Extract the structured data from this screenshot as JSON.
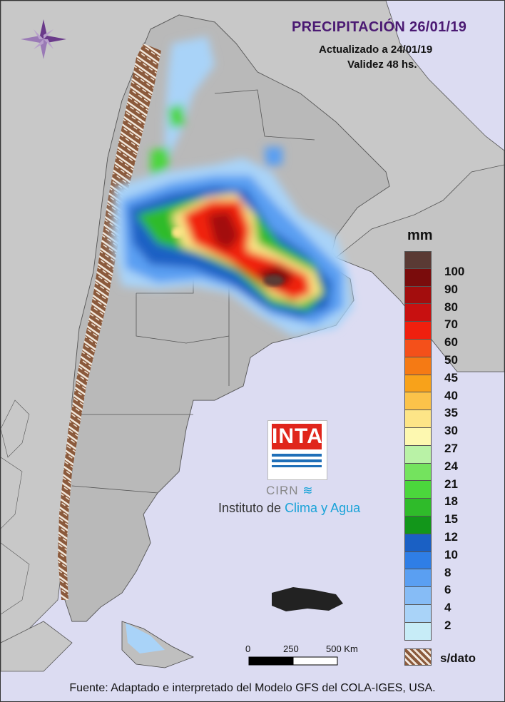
{
  "header": {
    "title": "PRECIPITACIÓN 26/01/19",
    "updated": "Actualizado a 24/01/19",
    "validity": "Validez 48 hs."
  },
  "legend": {
    "unit": "mm",
    "classes": [
      {
        "label": "100",
        "color": "#5a3a34"
      },
      {
        "label": "90",
        "color": "#7a0c0c"
      },
      {
        "label": "80",
        "color": "#a30d0d"
      },
      {
        "label": "70",
        "color": "#c81010"
      },
      {
        "label": "60",
        "color": "#f0200e"
      },
      {
        "label": "50",
        "color": "#f4501a"
      },
      {
        "label": "45",
        "color": "#f57a14"
      },
      {
        "label": "40",
        "color": "#f8a21a"
      },
      {
        "label": "35",
        "color": "#fbc34a"
      },
      {
        "label": "30",
        "color": "#fde587"
      },
      {
        "label": "27",
        "color": "#fdf8b0"
      },
      {
        "label": "24",
        "color": "#b9f2a6"
      },
      {
        "label": "21",
        "color": "#74e35e"
      },
      {
        "label": "18",
        "color": "#4bd63c"
      },
      {
        "label": "15",
        "color": "#2fbb2a"
      },
      {
        "label": "12",
        "color": "#12961a"
      },
      {
        "label": "10",
        "color": "#1a60c4"
      },
      {
        "label": "8",
        "color": "#2f7ee6"
      },
      {
        "label": "6",
        "color": "#5a9ff2"
      },
      {
        "label": "4",
        "color": "#86bcf6"
      },
      {
        "label": "2",
        "color": "#a9d3f8"
      },
      {
        "label": "",
        "color": "#c7ecf7"
      }
    ],
    "nodata_label": "s/dato"
  },
  "scalebar": {
    "labels": [
      "0",
      "250",
      "500 Km"
    ]
  },
  "logo": {
    "brand": "INTA",
    "center": "CIRN",
    "institute_prefix": "Instituto de ",
    "institute_highlight": "Clima y Agua"
  },
  "footer": {
    "source": "Fuente: Adaptado e interpretado del Modelo GFS del COLA-IGES, USA."
  }
}
